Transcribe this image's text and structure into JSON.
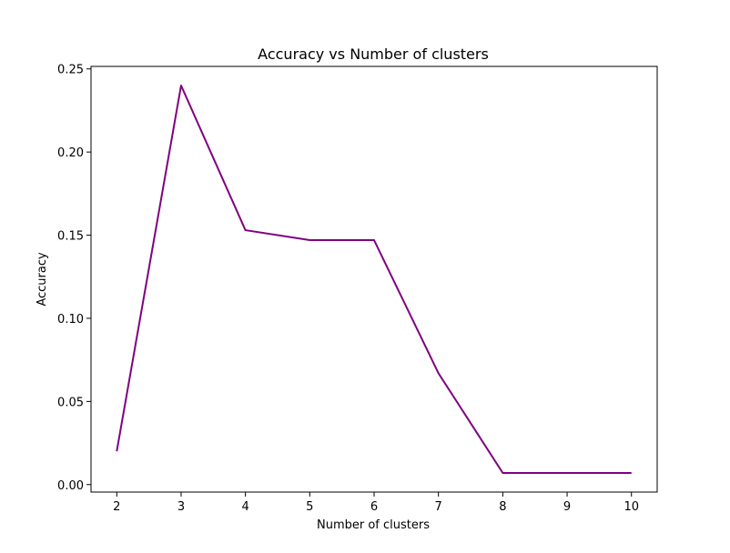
{
  "chart_data": {
    "type": "line",
    "title": "Accuracy vs Number of clusters",
    "xlabel": "Number of clusters",
    "ylabel": "Accuracy",
    "x": [
      2,
      3,
      4,
      5,
      6,
      7,
      8,
      9,
      10
    ],
    "series": [
      {
        "values": [
          0.02,
          0.24,
          0.153,
          0.147,
          0.147,
          0.067,
          0.007,
          0.007,
          0.007
        ],
        "color": "#800080"
      }
    ],
    "xlim": [
      1.6,
      10.4
    ],
    "ylim": [
      -0.0045,
      0.2515
    ],
    "xticks": [
      2,
      3,
      4,
      5,
      6,
      7,
      8,
      9,
      10
    ],
    "yticks": [
      0.0,
      0.05,
      0.1,
      0.15,
      0.2,
      0.25
    ],
    "ytick_labels": [
      "0.00",
      "0.05",
      "0.10",
      "0.15",
      "0.20",
      "0.25"
    ],
    "grid": false,
    "legend": false
  }
}
